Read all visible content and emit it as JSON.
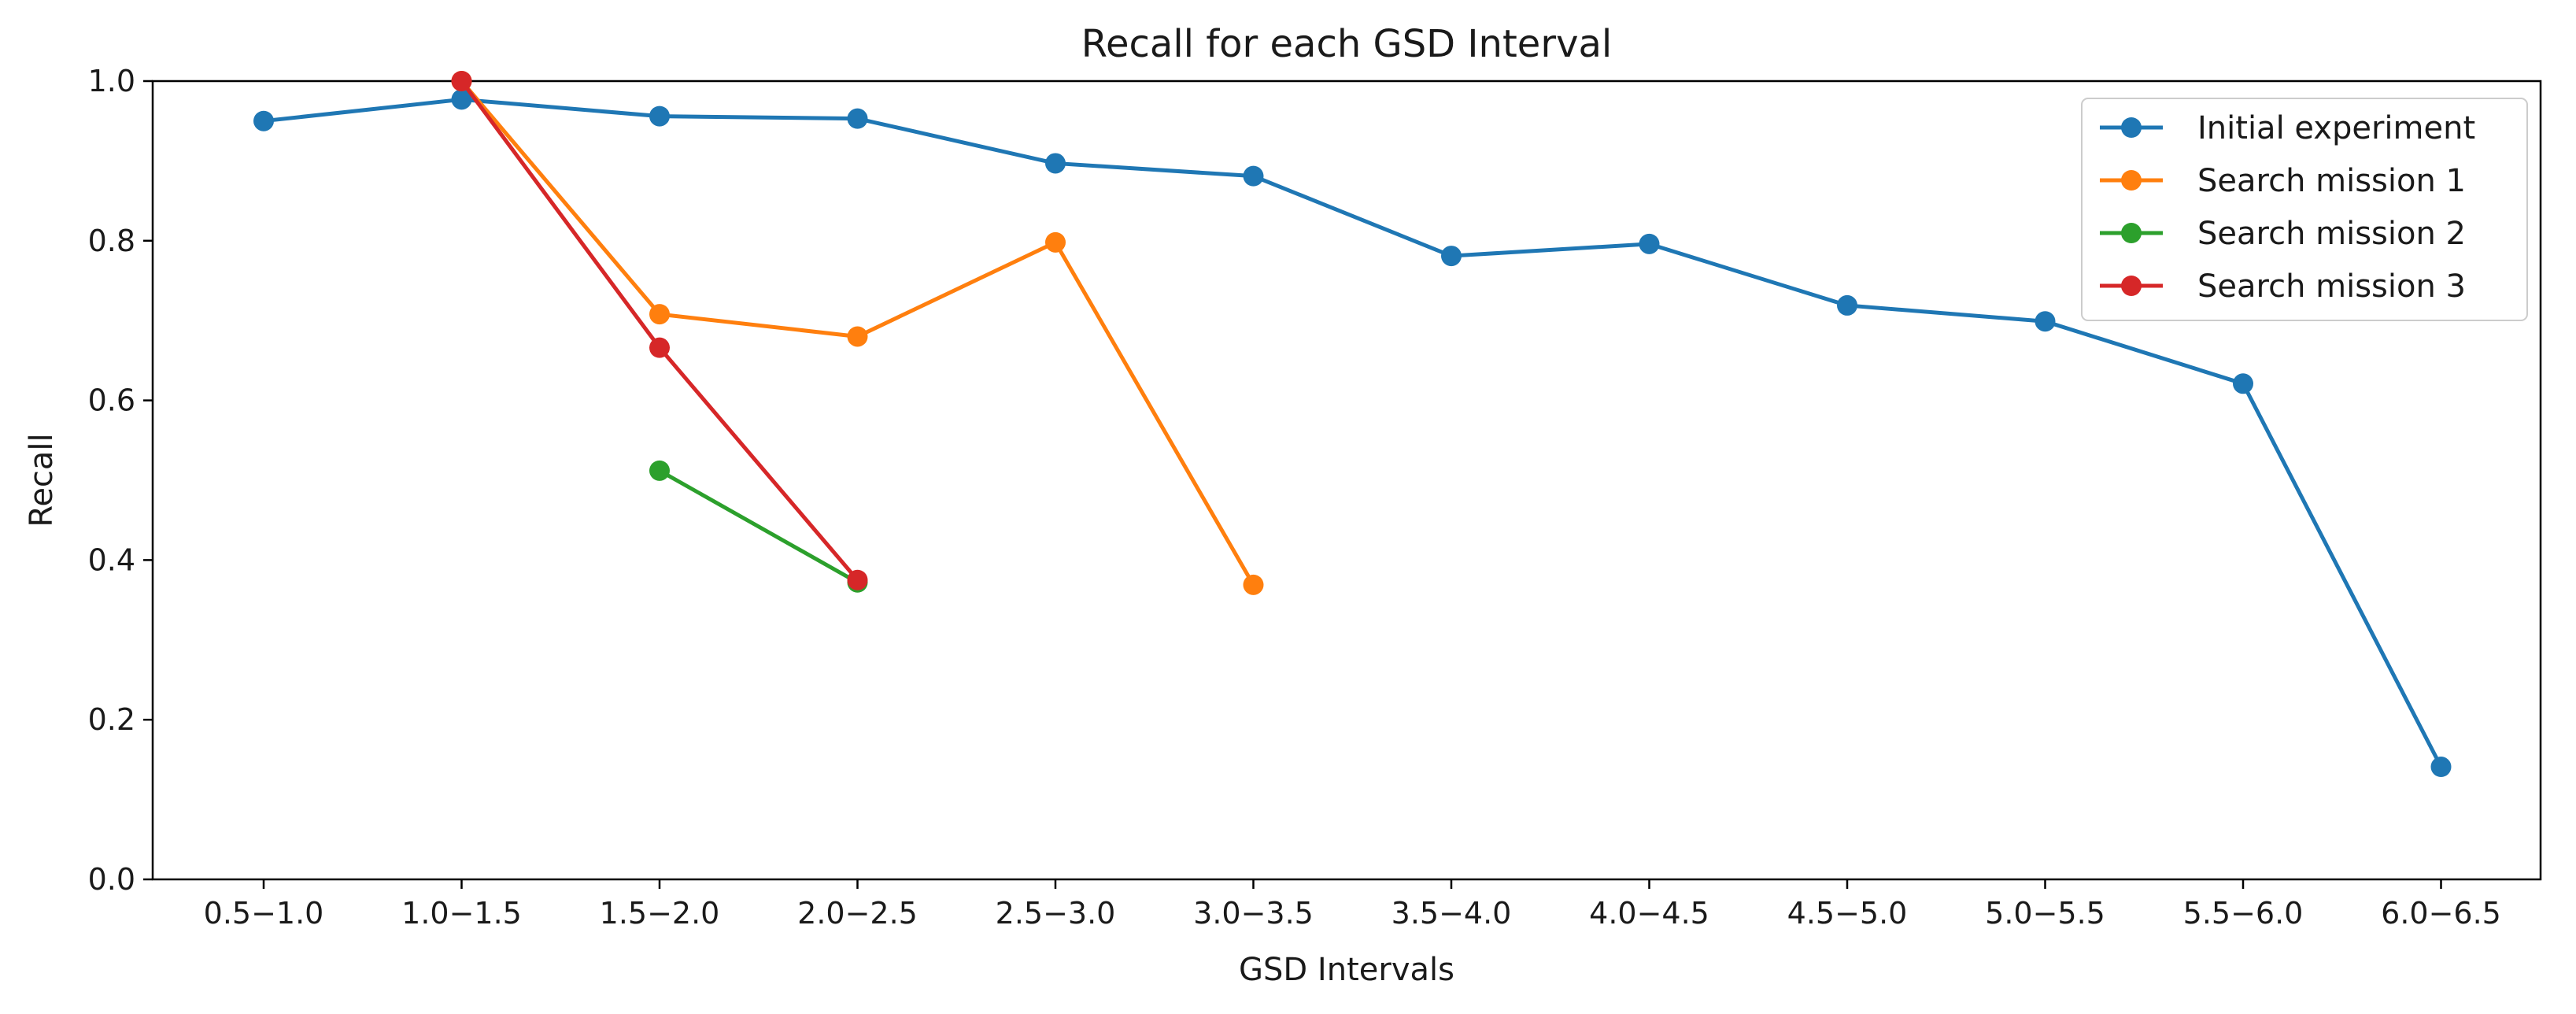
{
  "chart_data": {
    "type": "line",
    "title": "Recall for each GSD Interval",
    "xlabel": "GSD Intervals",
    "ylabel": "Recall",
    "ylim": [
      0,
      1
    ],
    "yticks": [
      0.0,
      0.2,
      0.4,
      0.6,
      0.8,
      1.0
    ],
    "ytick_labels": [
      "0.0",
      "0.2",
      "0.4",
      "0.6",
      "0.8",
      "1.0"
    ],
    "grid": false,
    "legend_position": "top-right",
    "categories": [
      "0.5−1.0",
      "1.0−1.5",
      "1.5−2.0",
      "2.0−2.5",
      "2.5−3.0",
      "3.0−3.5",
      "3.5−4.0",
      "4.0−4.5",
      "4.5−5.0",
      "5.0−5.5",
      "5.5−6.0",
      "6.0−6.5"
    ],
    "series": [
      {
        "name": "Initial experiment",
        "color": "#1f77b4",
        "values": [
          0.95,
          0.977,
          0.956,
          0.953,
          0.897,
          0.881,
          0.781,
          0.796,
          0.719,
          0.699,
          0.621,
          0.141
        ]
      },
      {
        "name": "Search mission 1",
        "color": "#ff7f0e",
        "values": [
          null,
          1.0,
          0.708,
          0.68,
          0.798,
          0.369,
          null,
          null,
          null,
          null,
          null,
          null
        ]
      },
      {
        "name": "Search mission 2",
        "color": "#2ca02c",
        "values": [
          null,
          null,
          0.512,
          0.372,
          null,
          null,
          null,
          null,
          null,
          null,
          null,
          null
        ]
      },
      {
        "name": "Search mission 3",
        "color": "#d62728",
        "values": [
          null,
          1.0,
          0.666,
          0.375,
          null,
          null,
          null,
          null,
          null,
          null,
          null,
          null
        ]
      }
    ]
  }
}
